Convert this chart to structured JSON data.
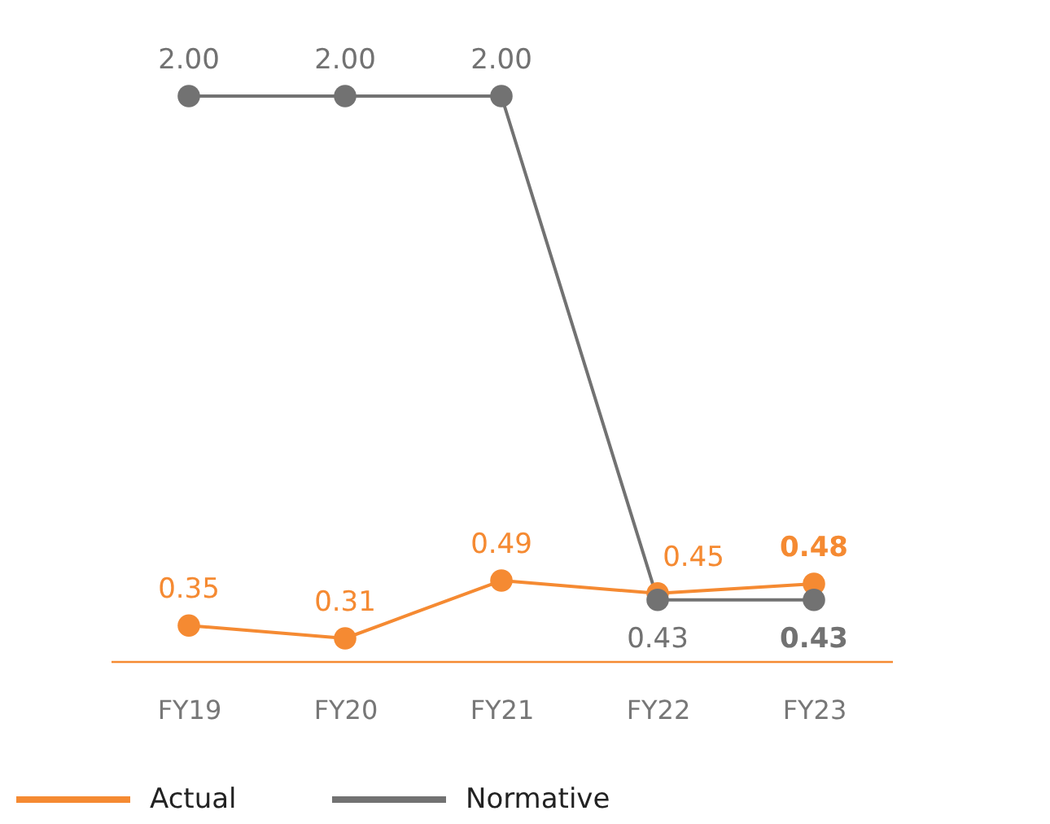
{
  "chart_data": {
    "type": "line",
    "categories": [
      "FY19",
      "FY20",
      "FY21",
      "FY22",
      "FY23"
    ],
    "marker": "circle",
    "legend": "bottom left",
    "series": [
      {
        "name": "Actual",
        "color": "#f58a32",
        "values": [
          0.35,
          0.31,
          0.49,
          0.45,
          0.48
        ],
        "value_labels": [
          "0.35",
          "0.31",
          "0.49",
          "0.45",
          "0.48"
        ]
      },
      {
        "name": "Normative",
        "color": "#727272",
        "values": [
          2.0,
          2.0,
          2.0,
          0.43,
          0.43
        ],
        "value_labels": [
          "2.00",
          "2.00",
          "2.00",
          "0.43",
          "0.43"
        ]
      }
    ]
  }
}
